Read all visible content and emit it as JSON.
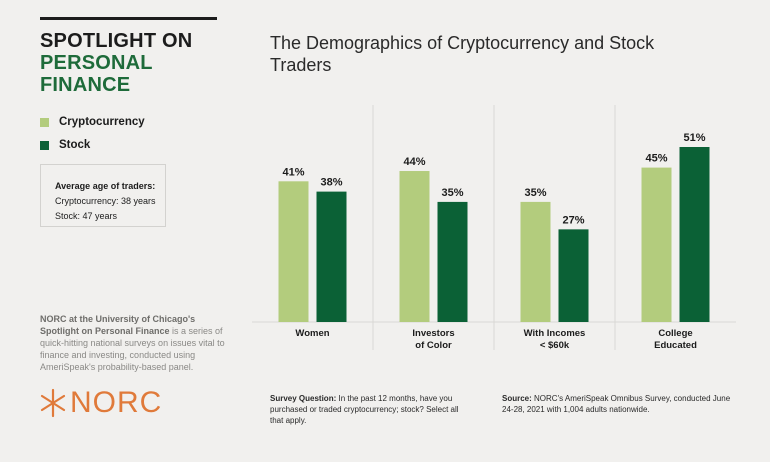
{
  "header": {
    "line1": "SPOTLIGHT ON",
    "line2": "PERSONAL",
    "line3": "FINANCE"
  },
  "age_box": {
    "heading": "Average age of traders:",
    "crypto_label": "Cryptocurrency:",
    "crypto_value": " 38 years",
    "stock_label": "Stock:",
    "stock_value": " 47 years"
  },
  "about": {
    "bold": "NORC at the University of Chicago's Spotlight on Personal Finance",
    "rest": " is a series of quick-hitting national surveys on issues vital to finance and investing, conducted using AmeriSpeak's probability-based panel."
  },
  "logo": {
    "text": "NORC",
    "icon": "norc-star-icon"
  },
  "survey": {
    "label": "Survey Question:",
    "text": " In the past 12 months, have you purchased or traded cryptocurrency; stock?  Select all that apply."
  },
  "source": {
    "label": "Source:",
    "text": " NORC's AmeriSpeak Omnibus Survey, conducted June 24-28, 2021 with 1,004 adults nationwide."
  },
  "colors": {
    "crypto": "#b3cc7d",
    "stock": "#0b6136",
    "heading_green": "#1e6b3a",
    "logo_orange": "#e07a3a"
  },
  "chart_data": {
    "type": "bar",
    "title": "The Demographics of Cryptocurrency and Stock Traders",
    "categories": [
      [
        "Women"
      ],
      [
        "Investors",
        "of Color"
      ],
      [
        "With Incomes",
        "< $60k"
      ],
      [
        "College",
        "Educated"
      ]
    ],
    "series": [
      {
        "name": "Cryptocurrency",
        "values": [
          41,
          44,
          35,
          45
        ],
        "labels": [
          "41%",
          "44%",
          "35%",
          "45%"
        ]
      },
      {
        "name": "Stock",
        "values": [
          38,
          35,
          27,
          51
        ],
        "labels": [
          "38%",
          "35%",
          "27%",
          "51%"
        ]
      }
    ],
    "ylim": [
      0,
      51
    ],
    "grid": false,
    "legend": "left"
  }
}
